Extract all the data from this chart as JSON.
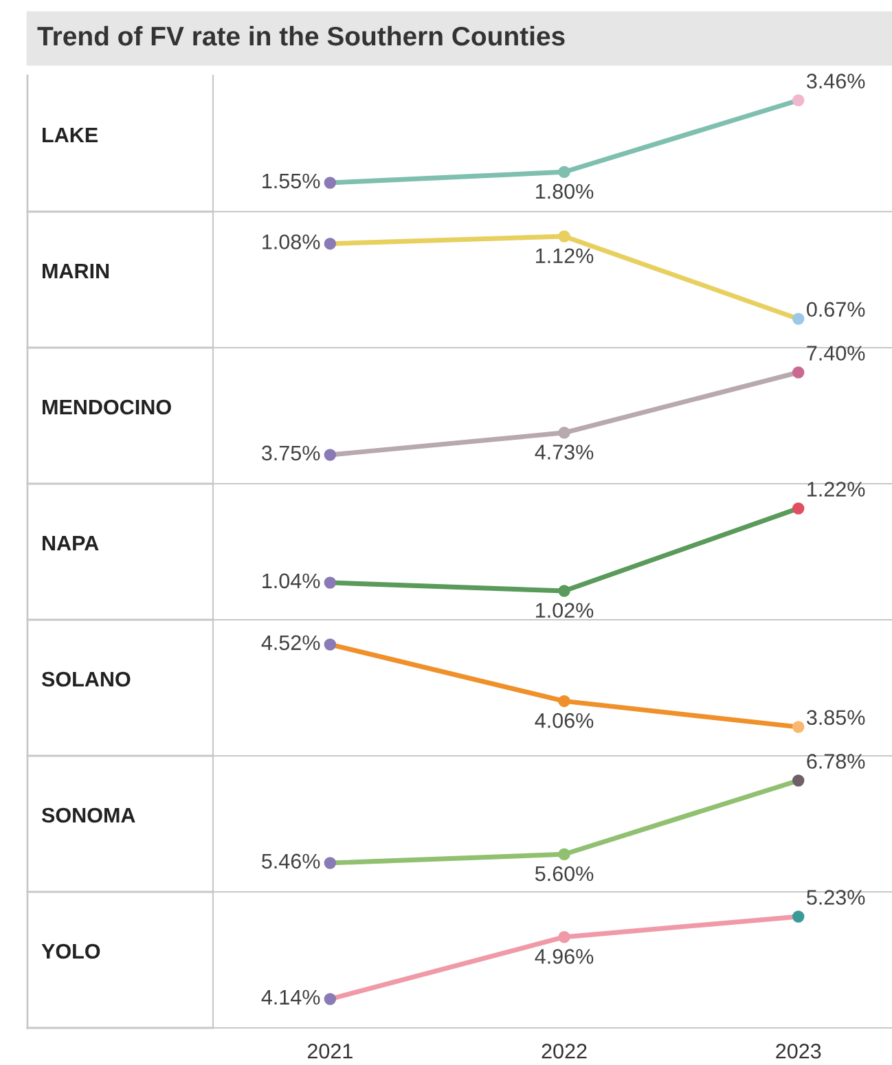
{
  "chart_data": [
    {
      "type": "line",
      "title": "Trend of FV rate in the Southern Counties",
      "ylabel": "LAKE",
      "categories": [
        "2021",
        "2022",
        "2023"
      ],
      "series": [
        {
          "color": "#7fbfb0",
          "colors": [
            "#8a7ab5",
            "#7fbfb0",
            "#f2b6cf"
          ],
          "values": [
            1.55,
            1.8,
            3.46
          ],
          "value_labels": [
            "1.55%",
            "1.80%",
            "3.46%"
          ]
        }
      ],
      "marker": "circle",
      "tick_labels": false
    },
    {
      "type": "line",
      "ylabel": "MARIN",
      "categories": [
        "2021",
        "2022",
        "2023"
      ],
      "series": [
        {
          "color": "#e8d060",
          "colors": [
            "#8a7ab5",
            "#e8d060",
            "#9cc8e6"
          ],
          "values": [
            1.08,
            1.12,
            0.67
          ],
          "value_labels": [
            "1.08%",
            "1.12%",
            "0.67%"
          ]
        }
      ],
      "marker": "circle",
      "tick_labels": false
    },
    {
      "type": "line",
      "ylabel": "MENDOCINO",
      "categories": [
        "2021",
        "2022",
        "2023"
      ],
      "series": [
        {
          "color": "#b8a8b0",
          "colors": [
            "#8a7ab5",
            "#b8a8b0",
            "#c86a90"
          ],
          "values": [
            3.75,
            4.73,
            7.4
          ],
          "value_labels": [
            "3.75%",
            "4.73%",
            "7.40%"
          ]
        }
      ],
      "marker": "circle",
      "tick_labels": false
    },
    {
      "type": "line",
      "ylabel": "NAPA",
      "categories": [
        "2021",
        "2022",
        "2023"
      ],
      "series": [
        {
          "color": "#5a9a5a",
          "colors": [
            "#8a7ab5",
            "#5a9a5a",
            "#e05060"
          ],
          "values": [
            1.04,
            1.02,
            1.22
          ],
          "value_labels": [
            "1.04%",
            "1.02%",
            "1.22%"
          ]
        }
      ],
      "marker": "circle",
      "tick_labels": false
    },
    {
      "type": "line",
      "ylabel": "SOLANO",
      "categories": [
        "2021",
        "2022",
        "2023"
      ],
      "series": [
        {
          "color": "#f0902a",
          "colors": [
            "#8a7ab5",
            "#f0902a",
            "#f8b870"
          ],
          "values": [
            4.52,
            4.06,
            3.85
          ],
          "value_labels": [
            "4.52%",
            "4.06%",
            "3.85%"
          ]
        }
      ],
      "marker": "circle",
      "tick_labels": false
    },
    {
      "type": "line",
      "ylabel": "SONOMA",
      "categories": [
        "2021",
        "2022",
        "2023"
      ],
      "series": [
        {
          "color": "#90c070",
          "colors": [
            "#8a7ab5",
            "#90c070",
            "#706068"
          ],
          "values": [
            5.46,
            5.6,
            6.78
          ],
          "value_labels": [
            "5.46%",
            "5.60%",
            "6.78%"
          ]
        }
      ],
      "marker": "circle",
      "tick_labels": false
    },
    {
      "type": "line",
      "ylabel": "YOLO",
      "categories": [
        "2021",
        "2022",
        "2023"
      ],
      "series": [
        {
          "color": "#f09aa8",
          "colors": [
            "#8a7ab5",
            "#f09aa8",
            "#3a9a9a"
          ],
          "values": [
            4.14,
            4.96,
            5.23
          ],
          "value_labels": [
            "4.14%",
            "4.96%",
            "5.23%"
          ]
        }
      ],
      "marker": "circle",
      "tick_labels": "x"
    }
  ]
}
